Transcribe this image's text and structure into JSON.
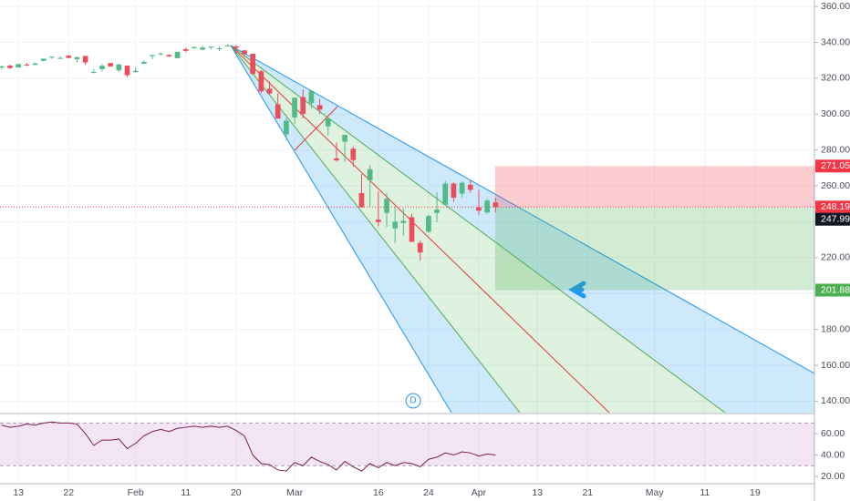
{
  "chart_data": [
    {
      "type": "candlestick",
      "open": [
        326,
        327,
        326,
        327.6,
        327.4,
        329.7,
        331.7,
        330.9,
        332.6,
        330.6,
        332.4,
        323,
        325.1,
        328.4,
        324.4,
        327,
        323.4,
        328.1,
        332.3,
        333.9,
        333,
        331.2,
        336.2,
        336.8,
        335.9,
        337.5,
        336.5,
        337.8,
        337.7,
        335.5,
        333.6,
        323.9,
        314.2,
        305.5,
        288.7,
        298.2,
        309.5,
        306.1,
        304.98,
        293.1,
        275.3,
        284.6,
        280.7,
        256,
        263.1,
        241.2,
        245,
        236.3,
        239.3,
        242.5,
        228.2,
        234.4,
        244.9,
        249.5,
        261.3,
        255.7,
        260.6,
        247.98,
        245.2,
        250.8
      ],
      "high": [
        327,
        327.5,
        327.9,
        328.6,
        329,
        330.9,
        332,
        332.2,
        332.9,
        332,
        332.5,
        325.1,
        327.9,
        328.6,
        327.9,
        327.2,
        326.2,
        330,
        333.1,
        334.2,
        333.3,
        334.8,
        337,
        337.6,
        338.1,
        337.7,
        337.7,
        339.1,
        338.6,
        335.8,
        333.6,
        324.6,
        318.1,
        311.6,
        297.9,
        309.2,
        313.8,
        313.1,
        308.5,
        298,
        284.2,
        288.5,
        281.9,
        266.7,
        271.5,
        256.9,
        256.2,
        248.4,
        247.4,
        244.5,
        229.7,
        244.1,
        256.4,
        262.8,
        262,
        262.4,
        263.3,
        257.7,
        252.7,
        253.3
      ],
      "low": [
        325,
        325.2,
        325.8,
        326.8,
        327.3,
        329.3,
        330.8,
        330.8,
        331.1,
        328.8,
        327.4,
        322.7,
        323.8,
        326.4,
        323.5,
        320.7,
        323.2,
        327.7,
        330.7,
        332.6,
        331.8,
        331.2,
        334.5,
        336.2,
        335.6,
        336.1,
        335.2,
        337.5,
        333.6,
        331.8,
        321.8,
        311.7,
        310.7,
        297.5,
        285.5,
        294.5,
        297.6,
        303.3,
        300,
        288,
        273.5,
        273.4,
        270.9,
        247.7,
        248.5,
        237.4,
        237.1,
        228,
        232.2,
        228.8,
        218.3,
        233.8,
        239.8,
        249.1,
        251.1,
        253.5,
        256.2,
        243.9,
        244.2,
        245.2
      ],
      "close": [
        326.6,
        325.7,
        327.9,
        327.4,
        328.2,
        330.9,
        332,
        331.3,
        331.3,
        331.7,
        328.8,
        323.5,
        326.9,
        326.6,
        327.7,
        321.7,
        324.1,
        329.1,
        332.9,
        333.9,
        332.2,
        334.7,
        335.3,
        337.4,
        337.1,
        337.6,
        336.7,
        338.3,
        336.9,
        333.5,
        322.4,
        312.7,
        311.5,
        297.5,
        296.3,
        309.1,
        300.2,
        313,
        302.5,
        297.5,
        274.2,
        288.4,
        274.4,
        248.1,
        269.3,
        239.8,
        252.8,
        240,
        240.5,
        228.8,
        222.9,
        243.2,
        246.8,
        261.2,
        253.4,
        261.7,
        257.8,
        246.2,
        251.8,
        248.2
      ],
      "up_color": "#53b987",
      "down_color": "#eb4d5c",
      "xlim": [
        -0.2,
        97.1
      ],
      "ylim": [
        133.6,
        363.6
      ],
      "yticks": [
        {
          "value": 360,
          "label": "360.00"
        },
        {
          "value": 340,
          "label": "340.00"
        },
        {
          "value": 320,
          "label": "320.00"
        },
        {
          "value": 300,
          "label": "300.00"
        },
        {
          "value": 280,
          "label": "280.00"
        },
        {
          "value": 260,
          "label": "260.00"
        },
        {
          "value": 240,
          "label": "240.00"
        },
        {
          "value": 220,
          "label": "220.00"
        },
        {
          "value": 200,
          "label": "200.00"
        },
        {
          "value": 180,
          "label": "180.00"
        },
        {
          "value": 160,
          "label": "160.00"
        },
        {
          "value": 140,
          "label": "140.00"
        }
      ],
      "xticks": [
        {
          "value": 2,
          "label": "13"
        },
        {
          "value": 8,
          "label": "22"
        },
        {
          "value": 16,
          "label": "Feb"
        },
        {
          "value": 22,
          "label": "11"
        },
        {
          "value": 28,
          "label": "20"
        },
        {
          "value": 35,
          "label": "Mar"
        },
        {
          "value": 45,
          "label": "16"
        },
        {
          "value": 51,
          "label": "24"
        },
        {
          "value": 57,
          "label": "Apr"
        },
        {
          "value": 64,
          "label": "13"
        },
        {
          "value": 70,
          "label": "21"
        },
        {
          "value": 78,
          "label": "May"
        },
        {
          "value": 84,
          "label": "11"
        },
        {
          "value": 90,
          "label": "19"
        }
      ],
      "price_line": 248.19,
      "price_line_color": "#f23645",
      "position": {
        "stop": 271.05,
        "entry": 247.99,
        "target": 201.88
      },
      "event_marker": "D"
    },
    {
      "type": "line",
      "values": [
        68,
        66,
        67,
        69,
        68,
        70,
        71,
        70,
        70,
        69,
        60,
        49,
        54,
        54,
        55,
        46,
        51,
        58,
        62,
        64,
        62,
        65,
        66,
        67,
        66,
        67,
        66,
        67,
        63,
        58,
        40,
        32,
        31,
        26,
        25,
        33,
        30,
        38,
        34,
        31,
        26,
        34,
        29,
        25,
        32,
        28,
        33,
        30,
        33,
        32,
        29,
        36,
        38,
        42,
        40,
        43,
        42,
        39,
        41,
        40
      ],
      "color": "#7b1f4f",
      "ylim": [
        14,
        78
      ],
      "bands": [
        30,
        70
      ],
      "yticks": [
        {
          "value": 60,
          "label": "60.00"
        },
        {
          "value": 40,
          "label": "40.00"
        },
        {
          "value": 20,
          "label": "20.00"
        }
      ]
    }
  ]
}
